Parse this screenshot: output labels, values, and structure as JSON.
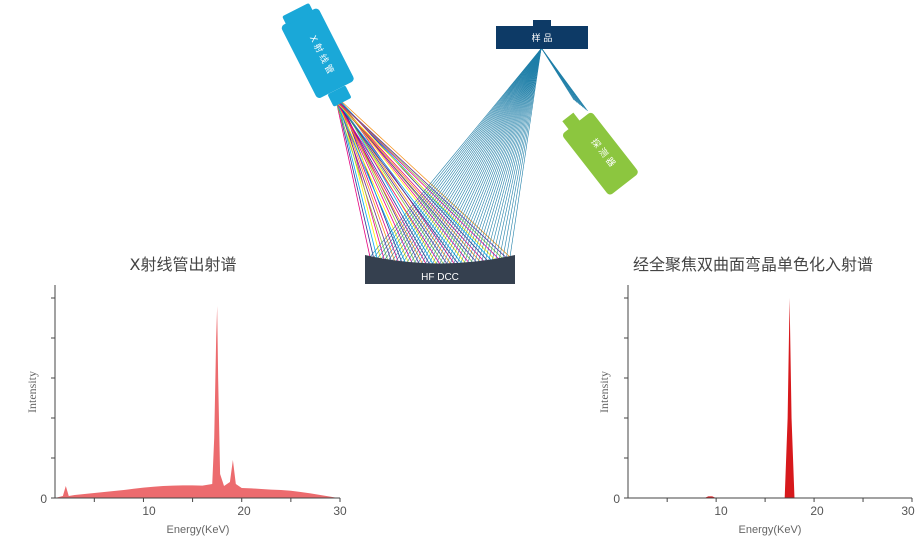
{
  "diagram": {
    "xray_tube_label": "X 射 线 管",
    "sample_label": "样 品",
    "detector_label": "探 测 器",
    "crystal_label": "HF DCC",
    "colors": {
      "tube": "#1aa8d8",
      "sample": "#0d3a66",
      "detector": "#8cc63f",
      "crystal": "#35404f",
      "reflected": "#1f7fa8"
    },
    "incident_ray_colors": [
      "#e6007e",
      "#2e3192",
      "#00aeef",
      "#fff200",
      "#ec008c",
      "#8dc63f",
      "#662d91",
      "#f7941d"
    ]
  },
  "chart_data": [
    {
      "type": "area",
      "title": "X射线管出射谱",
      "xlabel": "Energy(KeV)",
      "ylabel": "Intensity",
      "xlim": [
        1,
        30
      ],
      "ylim": [
        0,
        100
      ],
      "x_ticks": [
        10,
        20,
        30
      ],
      "y_ticks": [
        0
      ],
      "color": "#ec6b6e",
      "x": [
        1.0,
        1.8,
        2.1,
        2.4,
        3,
        4,
        5,
        6,
        7,
        8,
        9,
        10,
        11,
        12,
        13,
        14,
        15,
        16,
        17,
        17.2,
        17.4,
        17.5,
        17.6,
        17.8,
        18.2,
        18.8,
        19.1,
        19.4,
        20,
        21,
        22,
        23,
        24,
        25,
        26,
        27,
        28,
        29,
        29.8
      ],
      "y": [
        0,
        1,
        6,
        1,
        1.5,
        2,
        2.5,
        3,
        3.5,
        4,
        4.6,
        5.2,
        5.6,
        6.0,
        6.2,
        6.3,
        6.3,
        6.2,
        7,
        30,
        80,
        96,
        60,
        12,
        6,
        8,
        19,
        7,
        5,
        4.8,
        4.5,
        4.2,
        4.0,
        3.6,
        3.0,
        2.3,
        1.5,
        0.7,
        0
      ]
    },
    {
      "type": "area",
      "title": "经全聚焦双曲面弯晶单色化入射谱",
      "xlabel": "Energy(KeV)",
      "ylabel": "Intensity",
      "xlim": [
        1,
        30
      ],
      "ylim": [
        0,
        100
      ],
      "x_ticks": [
        10,
        20,
        30
      ],
      "y_ticks": [
        0
      ],
      "color": "#d7191c",
      "x": [
        1,
        8.8,
        9.2,
        9.6,
        10,
        17.0,
        17.3,
        17.5,
        17.7,
        18.0,
        30
      ],
      "y": [
        0,
        0,
        0.8,
        0.8,
        0,
        0,
        40,
        100,
        40,
        0,
        0
      ]
    }
  ]
}
